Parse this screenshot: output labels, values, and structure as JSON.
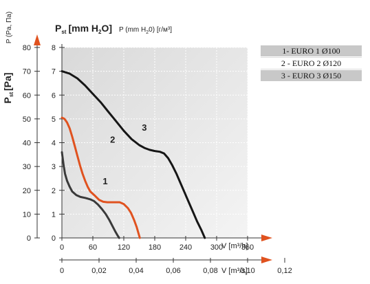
{
  "chart_data": {
    "type": "line",
    "title_pst_main": "P",
    "title_pst_sub": "st",
    "title_pst_unit": "[mm H",
    "title_pst_unit_sub": "2",
    "title_pst_unit_end": "O]",
    "title_p_main": "P (mm H",
    "title_p_sub": "2",
    "title_p_end": "0) [г/м³]",
    "ylabel_left_main": "P",
    "ylabel_left_sub": "st",
    "ylabel_left_unit": "[Pa]",
    "ylabel_left_alt": "P (Pa, Па)",
    "xlabel_top": "V [m³/h]",
    "xlabel_bottom": "V [m³/s]",
    "y_pa_ticks": [
      "0",
      "10",
      "20",
      "30",
      "40",
      "50",
      "60",
      "70",
      "80"
    ],
    "y_mm_ticks": [
      "0",
      "1",
      "2",
      "3",
      "4",
      "5",
      "6",
      "7",
      "8"
    ],
    "x_m3h_ticks": [
      "0",
      "60",
      "120",
      "180",
      "240",
      "300",
      "360"
    ],
    "x_m3s_ticks": [
      "0",
      "0,02",
      "0,04",
      "0,06",
      "0,08",
      "0,10",
      "0,12"
    ],
    "xlim_m3h": [
      0,
      405
    ],
    "ylim_mm": [
      0,
      8
    ],
    "colors": {
      "curve1": "#3a3a3a",
      "curve2": "#e0521f",
      "curve3": "#161616",
      "arrow": "#e0521f",
      "plotbg": "#e8e8e8"
    },
    "series": [
      {
        "label": "1",
        "color": "#3a3a3a",
        "x": [
          0,
          3,
          6,
          10,
          15,
          20,
          28,
          36,
          45,
          55,
          62,
          70,
          78,
          85,
          92,
          98,
          104,
          108,
          111
        ],
        "y": [
          3.6,
          3.1,
          2.7,
          2.4,
          2.15,
          1.95,
          1.8,
          1.72,
          1.68,
          1.62,
          1.55,
          1.4,
          1.2,
          1.0,
          0.75,
          0.5,
          0.25,
          0.1,
          0
        ]
      },
      {
        "label": "2",
        "color": "#e0521f",
        "x": [
          0,
          5,
          10,
          15,
          20,
          25,
          30,
          35,
          40,
          45,
          50,
          55,
          60,
          65,
          72,
          80,
          88,
          96,
          104,
          112,
          120,
          128,
          134,
          140,
          145,
          149,
          151
        ],
        "y": [
          5.05,
          5.0,
          4.85,
          4.6,
          4.25,
          3.85,
          3.45,
          3.05,
          2.7,
          2.4,
          2.15,
          1.95,
          1.85,
          1.75,
          1.6,
          1.52,
          1.5,
          1.5,
          1.5,
          1.5,
          1.42,
          1.25,
          1.05,
          0.75,
          0.45,
          0.15,
          0
        ]
      },
      {
        "label": "3",
        "color": "#161616",
        "x": [
          0,
          15,
          30,
          45,
          60,
          75,
          90,
          105,
          120,
          135,
          150,
          160,
          170,
          180,
          190,
          198,
          206,
          214,
          222,
          230,
          238,
          246,
          254,
          262,
          270,
          277
        ],
        "y": [
          7.0,
          6.9,
          6.7,
          6.4,
          6.05,
          5.7,
          5.3,
          4.9,
          4.5,
          4.15,
          3.9,
          3.78,
          3.7,
          3.65,
          3.62,
          3.55,
          3.35,
          3.05,
          2.7,
          2.3,
          1.9,
          1.5,
          1.1,
          0.7,
          0.35,
          0
        ]
      }
    ],
    "legend": [
      "1- EURO 1 Ø100",
      "2 - EURO 2 Ø120",
      "3 - EURO 3 Ø150"
    ]
  }
}
